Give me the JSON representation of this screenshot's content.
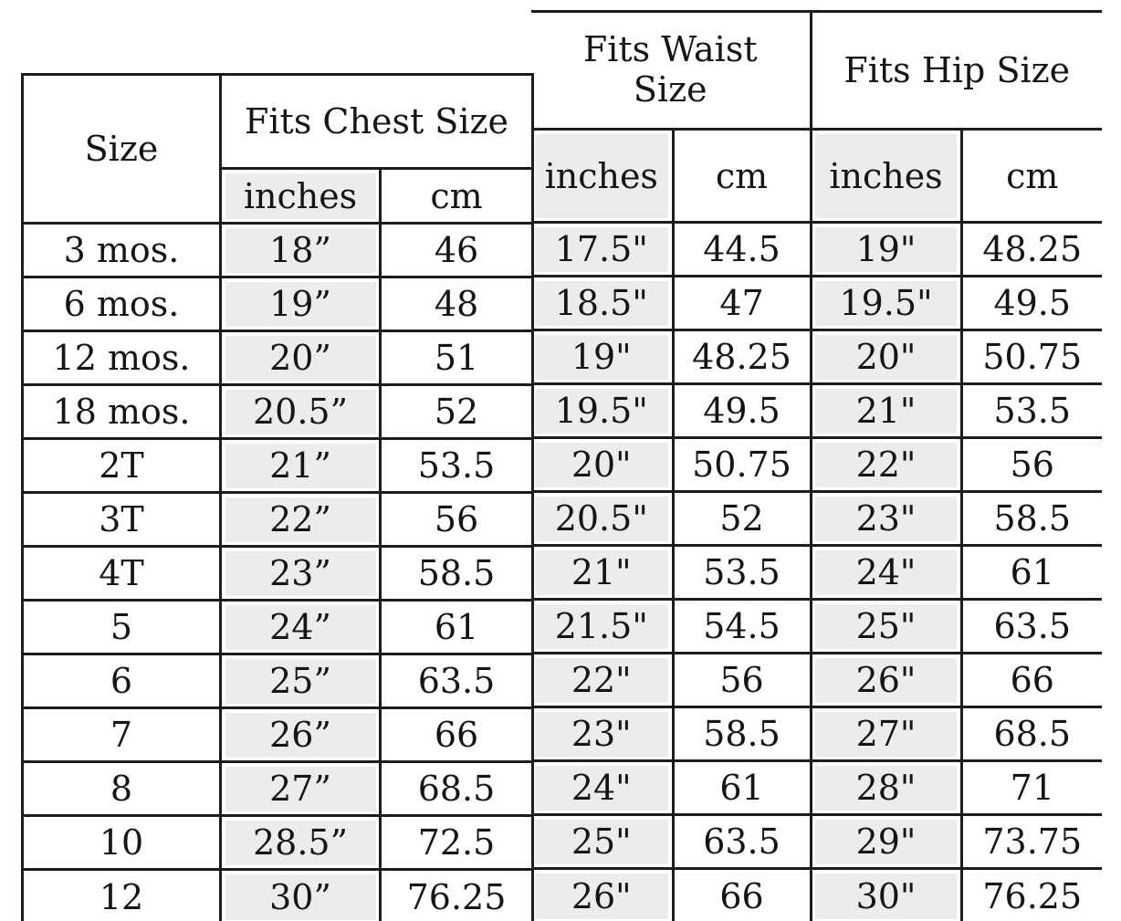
{
  "colors": {
    "background": "#ffffff",
    "cell_gray": "#ececec",
    "border": "#1c1c1c",
    "text": "#151515"
  },
  "chest_table": {
    "size_header": "Size",
    "group_header": "Fits Chest Size",
    "inches_header": "inches",
    "cm_header": "cm",
    "rows": [
      [
        "3 mos.",
        "18”",
        "46"
      ],
      [
        "6 mos.",
        "19”",
        "48"
      ],
      [
        "12 mos.",
        "20”",
        "51"
      ],
      [
        "18 mos.",
        "20.5”",
        "52"
      ],
      [
        "2T",
        "21”",
        "53.5"
      ],
      [
        "3T",
        "22”",
        "56"
      ],
      [
        "4T",
        "23”",
        "58.5"
      ],
      [
        "5",
        "24”",
        "61"
      ],
      [
        "6",
        "25”",
        "63.5"
      ],
      [
        "7",
        "26”",
        "66"
      ],
      [
        "8",
        "27”",
        "68.5"
      ],
      [
        "10",
        "28.5”",
        "72.5"
      ],
      [
        "12",
        "30”",
        "76.25"
      ]
    ]
  },
  "waist_hip_table": {
    "waist_group_header": "Fits Waist\nSize",
    "hip_group_header": "Fits Hip Size",
    "waist_inches_header": "inches",
    "waist_cm_header": "cm",
    "hip_inches_header": "inches",
    "hip_cm_header": "cm",
    "rows": [
      [
        "17.5\"",
        "44.5",
        "19\"",
        "48.25"
      ],
      [
        "18.5\"",
        "47",
        "19.5\"",
        "49.5"
      ],
      [
        "19\"",
        "48.25",
        "20\"",
        "50.75"
      ],
      [
        "19.5\"",
        "49.5",
        "21\"",
        "53.5"
      ],
      [
        "20\"",
        "50.75",
        "22\"",
        "56"
      ],
      [
        "20.5\"",
        "52",
        "23\"",
        "58.5"
      ],
      [
        "21\"",
        "53.5",
        "24\"",
        "61"
      ],
      [
        "21.5\"",
        "54.5",
        "25\"",
        "63.5"
      ],
      [
        "22\"",
        "56",
        "26\"",
        "66"
      ],
      [
        "23\"",
        "58.5",
        "27\"",
        "68.5"
      ],
      [
        "24\"",
        "61",
        "28\"",
        "71"
      ],
      [
        "25\"",
        "63.5",
        "29\"",
        "73.75"
      ],
      [
        "26\"",
        "66",
        "30\"",
        "76.25"
      ]
    ]
  }
}
